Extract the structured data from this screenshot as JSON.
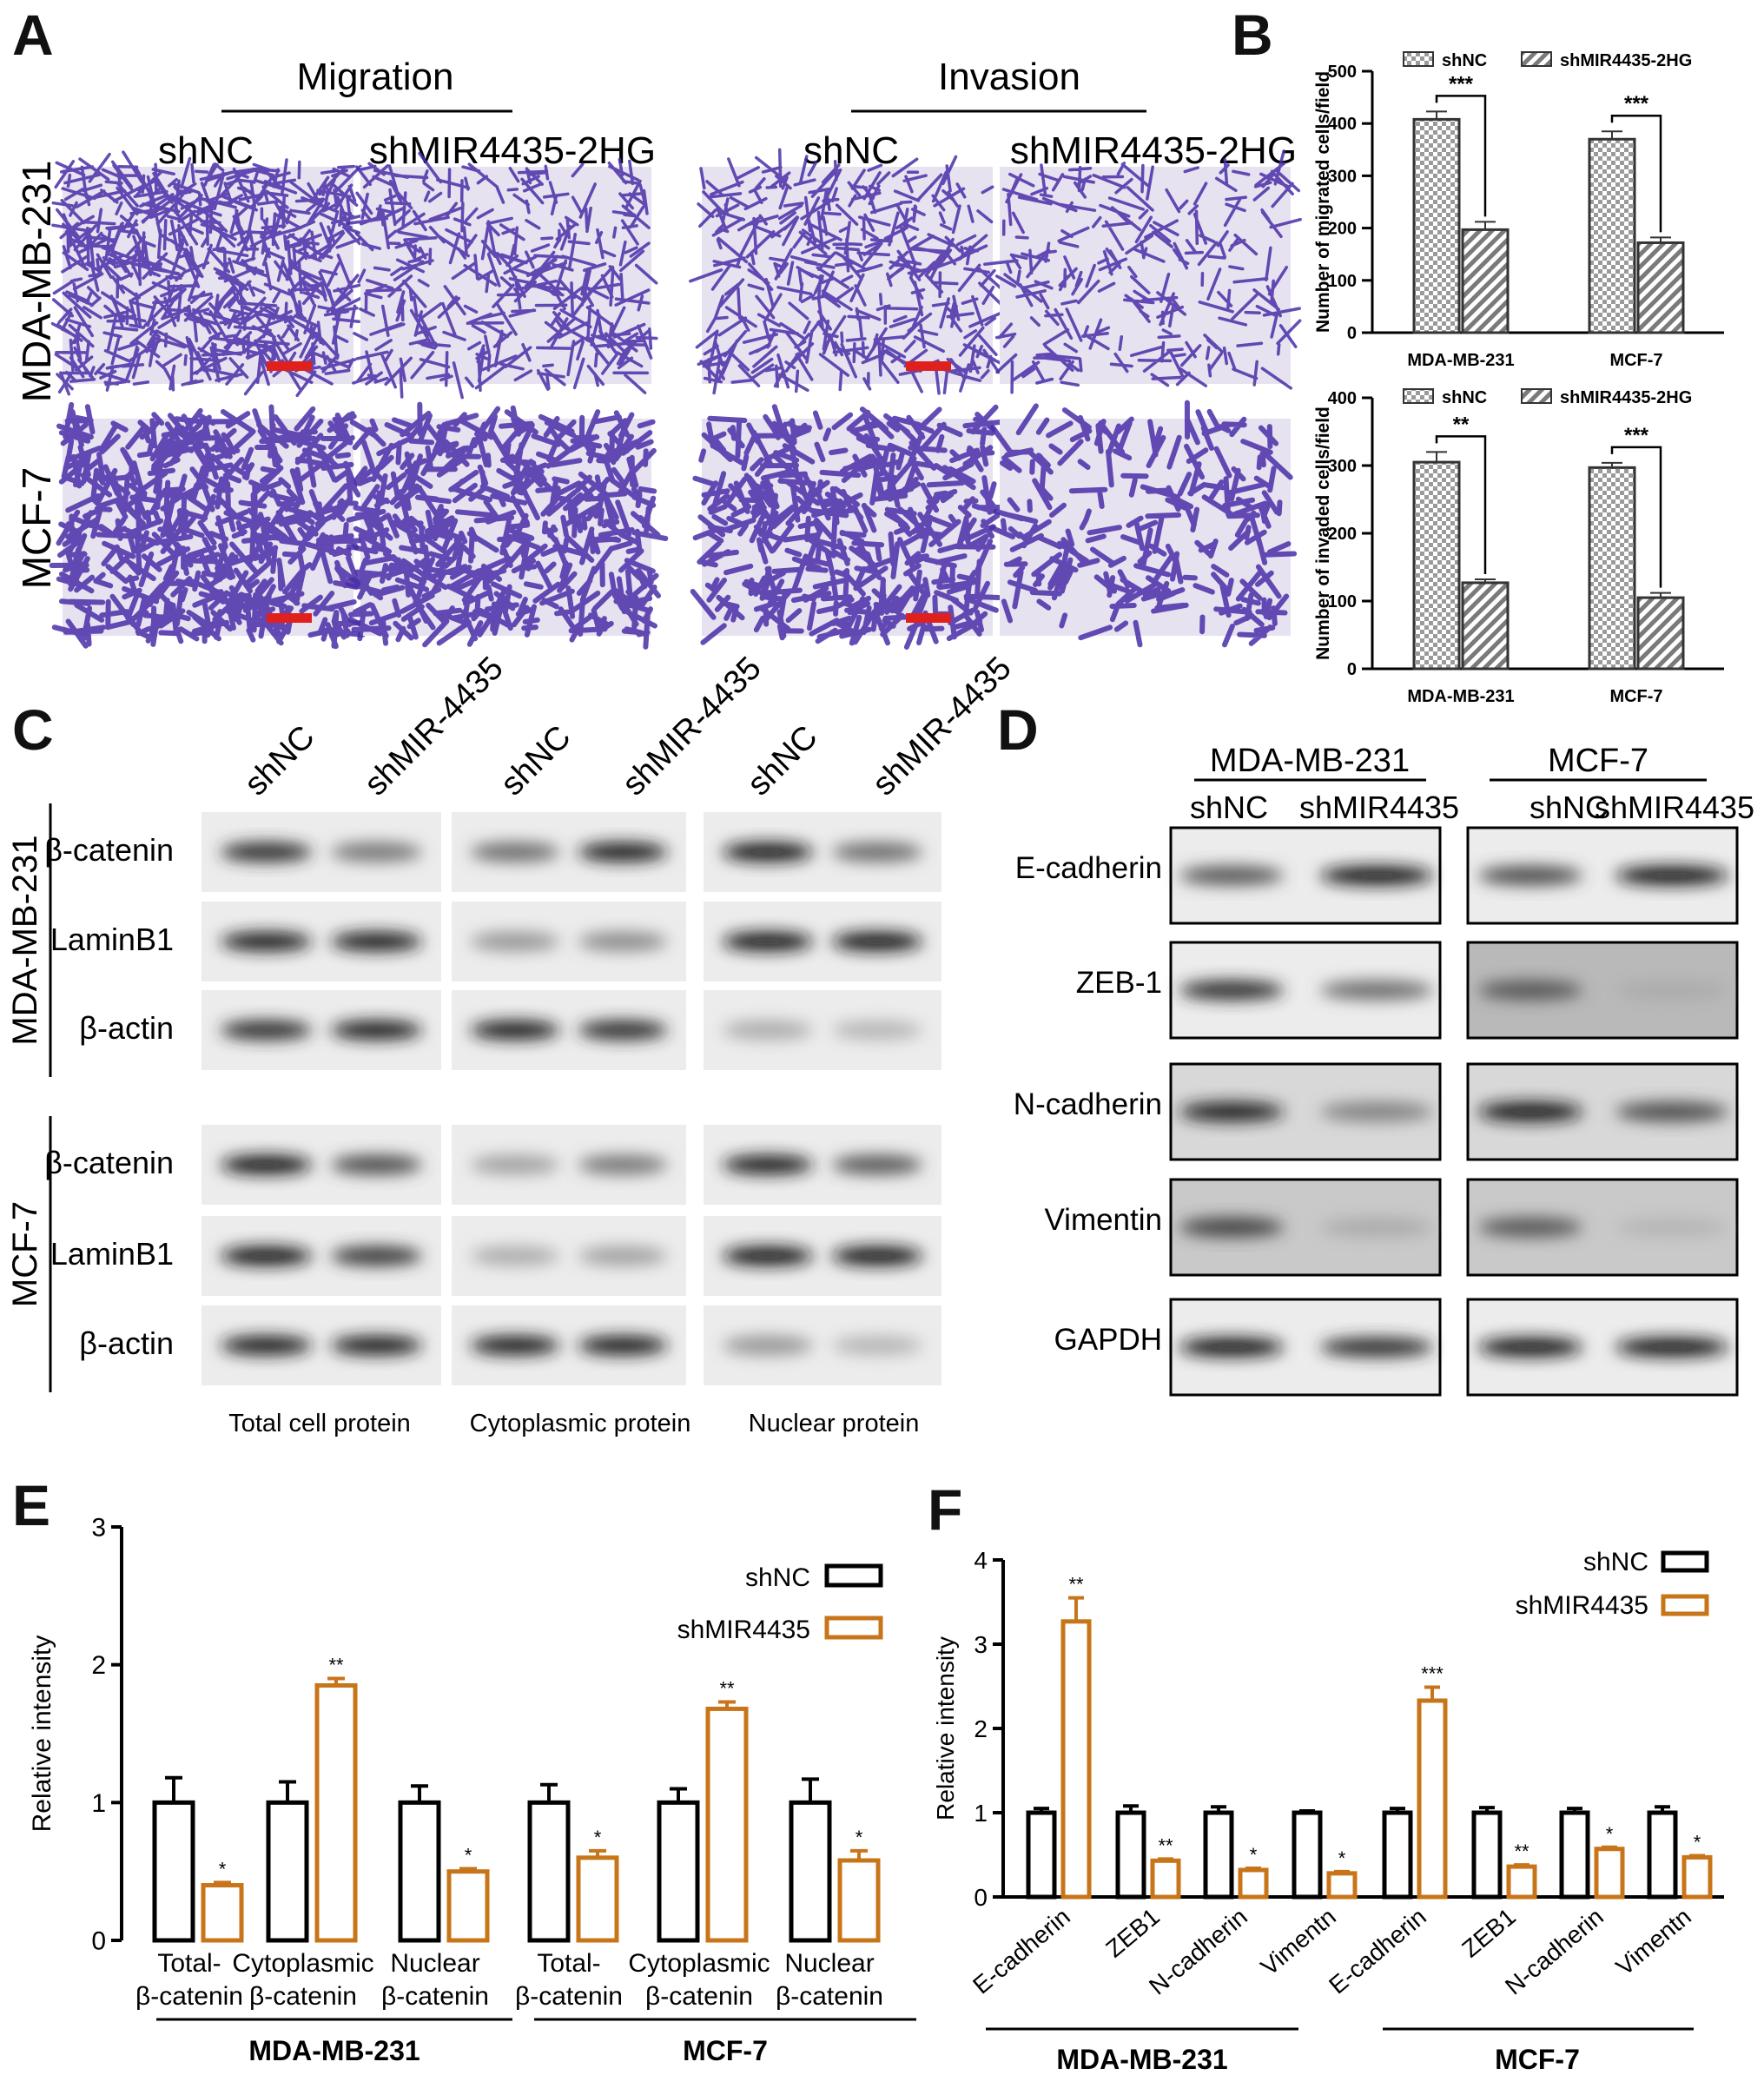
{
  "panel_labels": {
    "a": "A",
    "b": "B",
    "c": "C",
    "d": "D",
    "e": "E",
    "f": "F"
  },
  "panel_a": {
    "group_titles": [
      "Migration",
      "Invasion"
    ],
    "conditions": [
      "shNC",
      "shMIR4435-2HG",
      "shNC",
      "shMIR4435-2HG"
    ],
    "row_labels": [
      "MDA-MB-231",
      "MCF-7"
    ],
    "colors": {
      "stain": "#4a2ea8",
      "background": "#e6e2ef",
      "scale_bar": "#e0201d"
    }
  },
  "panel_c": {
    "lanes": [
      "shNC",
      "shMIR-4435",
      "shNC",
      "shMIR-4435",
      "shNC",
      "shMIR-4435"
    ],
    "cell_lines": [
      "MDA-MB-231",
      "MCF-7"
    ],
    "proteins": [
      "β-catenin",
      "LaminB1",
      "β-actin"
    ],
    "fractions": [
      "Total cell protein",
      "Cytoplasmic protein",
      "Nuclear protein"
    ]
  },
  "panel_d": {
    "cell_lines": [
      "MDA-MB-231",
      "MCF-7"
    ],
    "lanes": [
      "shNC",
      "shMIR4435",
      "shNC",
      "shMIR4435"
    ],
    "proteins": [
      "E-cadherin",
      "ZEB-1",
      "N-cadherin",
      "Vimentin",
      "GAPDH"
    ]
  },
  "chart_data": [
    {
      "panel": "B-top",
      "type": "bar",
      "categories": [
        "MDA-MB-231",
        "MCF-7"
      ],
      "ylabel": "Number of migrated cells/field",
      "ylim": [
        0,
        500
      ],
      "yticks": [
        0,
        100,
        200,
        300,
        400,
        500
      ],
      "legend_position": "top",
      "series": [
        {
          "name": "shNC",
          "values": [
            408,
            370
          ],
          "errors": [
            15,
            15
          ]
        },
        {
          "name": "shMIR4435-2HG",
          "values": [
            197,
            172
          ],
          "errors": [
            15,
            10
          ]
        }
      ],
      "significance": [
        "***",
        "***"
      ]
    },
    {
      "panel": "B-bottom",
      "type": "bar",
      "categories": [
        "MDA-MB-231",
        "MCF-7"
      ],
      "ylabel": "Number of invaded cells/field",
      "ylim": [
        0,
        400
      ],
      "yticks": [
        0,
        100,
        200,
        300,
        400
      ],
      "legend_position": "top",
      "series": [
        {
          "name": "shNC",
          "values": [
            305,
            297
          ],
          "errors": [
            15,
            7
          ]
        },
        {
          "name": "shMIR4435-2HG",
          "values": [
            127,
            105
          ],
          "errors": [
            5,
            7
          ]
        }
      ],
      "significance": [
        "**",
        "***"
      ]
    },
    {
      "panel": "E",
      "type": "bar",
      "categories": [
        "Total-\nβ-catenin",
        "Cytoplasmic\nβ-catenin",
        "Nuclear\nβ-catenin",
        "Total-\nβ-catenin",
        "Cytoplasmic\nβ-catenin",
        "Nuclear\nβ-catenin"
      ],
      "groups": [
        "MDA-MB-231",
        "MCF-7"
      ],
      "ylabel": "Relative intensity",
      "ylim": [
        0,
        3
      ],
      "yticks": [
        0,
        1,
        2,
        3
      ],
      "legend_position": "top-right",
      "series": [
        {
          "name": "shNC",
          "values": [
            1.0,
            1.0,
            1.0,
            1.0,
            1.0,
            1.0
          ],
          "errors": [
            0.18,
            0.15,
            0.12,
            0.13,
            0.1,
            0.17
          ]
        },
        {
          "name": "shMIR4435",
          "values": [
            0.4,
            1.85,
            0.5,
            0.6,
            1.68,
            0.58
          ],
          "errors": [
            0.02,
            0.05,
            0.02,
            0.05,
            0.05,
            0.07
          ]
        }
      ],
      "significance": [
        "*",
        "**",
        "*",
        "*",
        "**",
        "*"
      ],
      "colors": {
        "shNC": "#000000",
        "shMIR4435": "#c8751a"
      }
    },
    {
      "panel": "F",
      "type": "bar",
      "categories": [
        "E-cadherin",
        "ZEB1",
        "N-cadherin",
        "Vimentn",
        "E-cadherin",
        "ZEB1",
        "N-cadherin",
        "Vimentn"
      ],
      "groups": [
        "MDA-MB-231",
        "MCF-7"
      ],
      "ylabel": "Relative intensity",
      "ylim": [
        0,
        4
      ],
      "yticks": [
        0,
        1,
        2,
        3,
        4
      ],
      "legend_position": "top-right",
      "series": [
        {
          "name": "shNC",
          "values": [
            1.0,
            1.0,
            1.0,
            1.0,
            1.0,
            1.0,
            1.0,
            1.0
          ],
          "errors": [
            0.05,
            0.08,
            0.07,
            0.02,
            0.05,
            0.06,
            0.05,
            0.07
          ]
        },
        {
          "name": "shMIR4435",
          "values": [
            3.27,
            0.43,
            0.32,
            0.28,
            2.33,
            0.36,
            0.57,
            0.47
          ],
          "errors": [
            0.28,
            0.02,
            0.02,
            0.02,
            0.16,
            0.02,
            0.02,
            0.02
          ]
        }
      ],
      "significance": [
        "**",
        "**",
        "*",
        "*",
        "***",
        "**",
        "*",
        "*"
      ],
      "colors": {
        "shNC": "#000000",
        "shMIR4435": "#c8751a"
      }
    }
  ]
}
